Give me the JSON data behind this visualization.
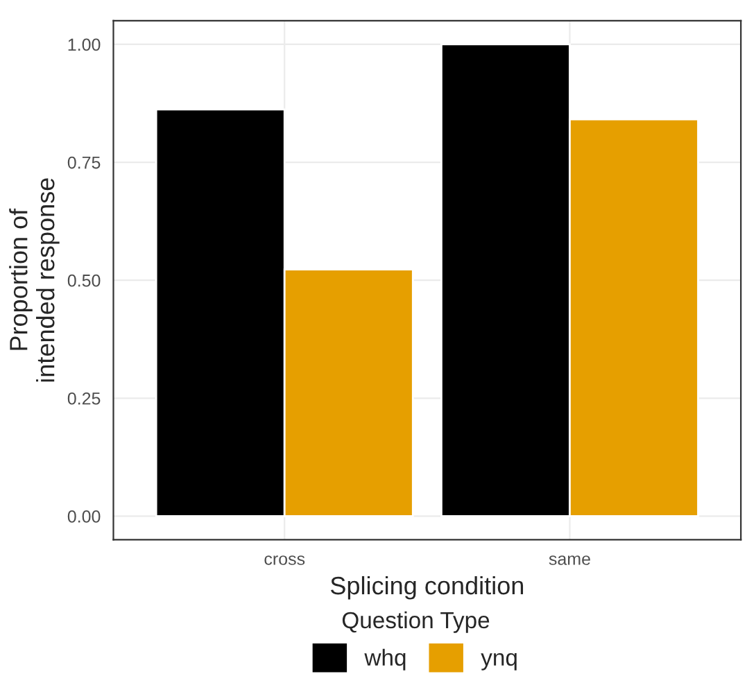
{
  "chart_data": {
    "type": "bar",
    "xlabel": "Splicing condition",
    "ylabel": "Proportion of\nintended response",
    "legend_title": "Question Type",
    "categories": [
      "cross",
      "same"
    ],
    "series": [
      {
        "name": "whq",
        "color": "#000000",
        "values": [
          0.862,
          1.0
        ]
      },
      {
        "name": "ynq",
        "color": "#e69f00",
        "values": [
          0.523,
          0.841
        ]
      }
    ],
    "ylim": [
      -0.05,
      1.05
    ],
    "yticks": [
      {
        "value": 0,
        "label": "0.00"
      },
      {
        "value": 0.25,
        "label": "0.25"
      },
      {
        "value": 0.5,
        "label": "0.50"
      },
      {
        "value": 0.75,
        "label": "0.75"
      },
      {
        "value": 1,
        "label": "1.00"
      }
    ],
    "grid": true,
    "legend": "bottom"
  }
}
